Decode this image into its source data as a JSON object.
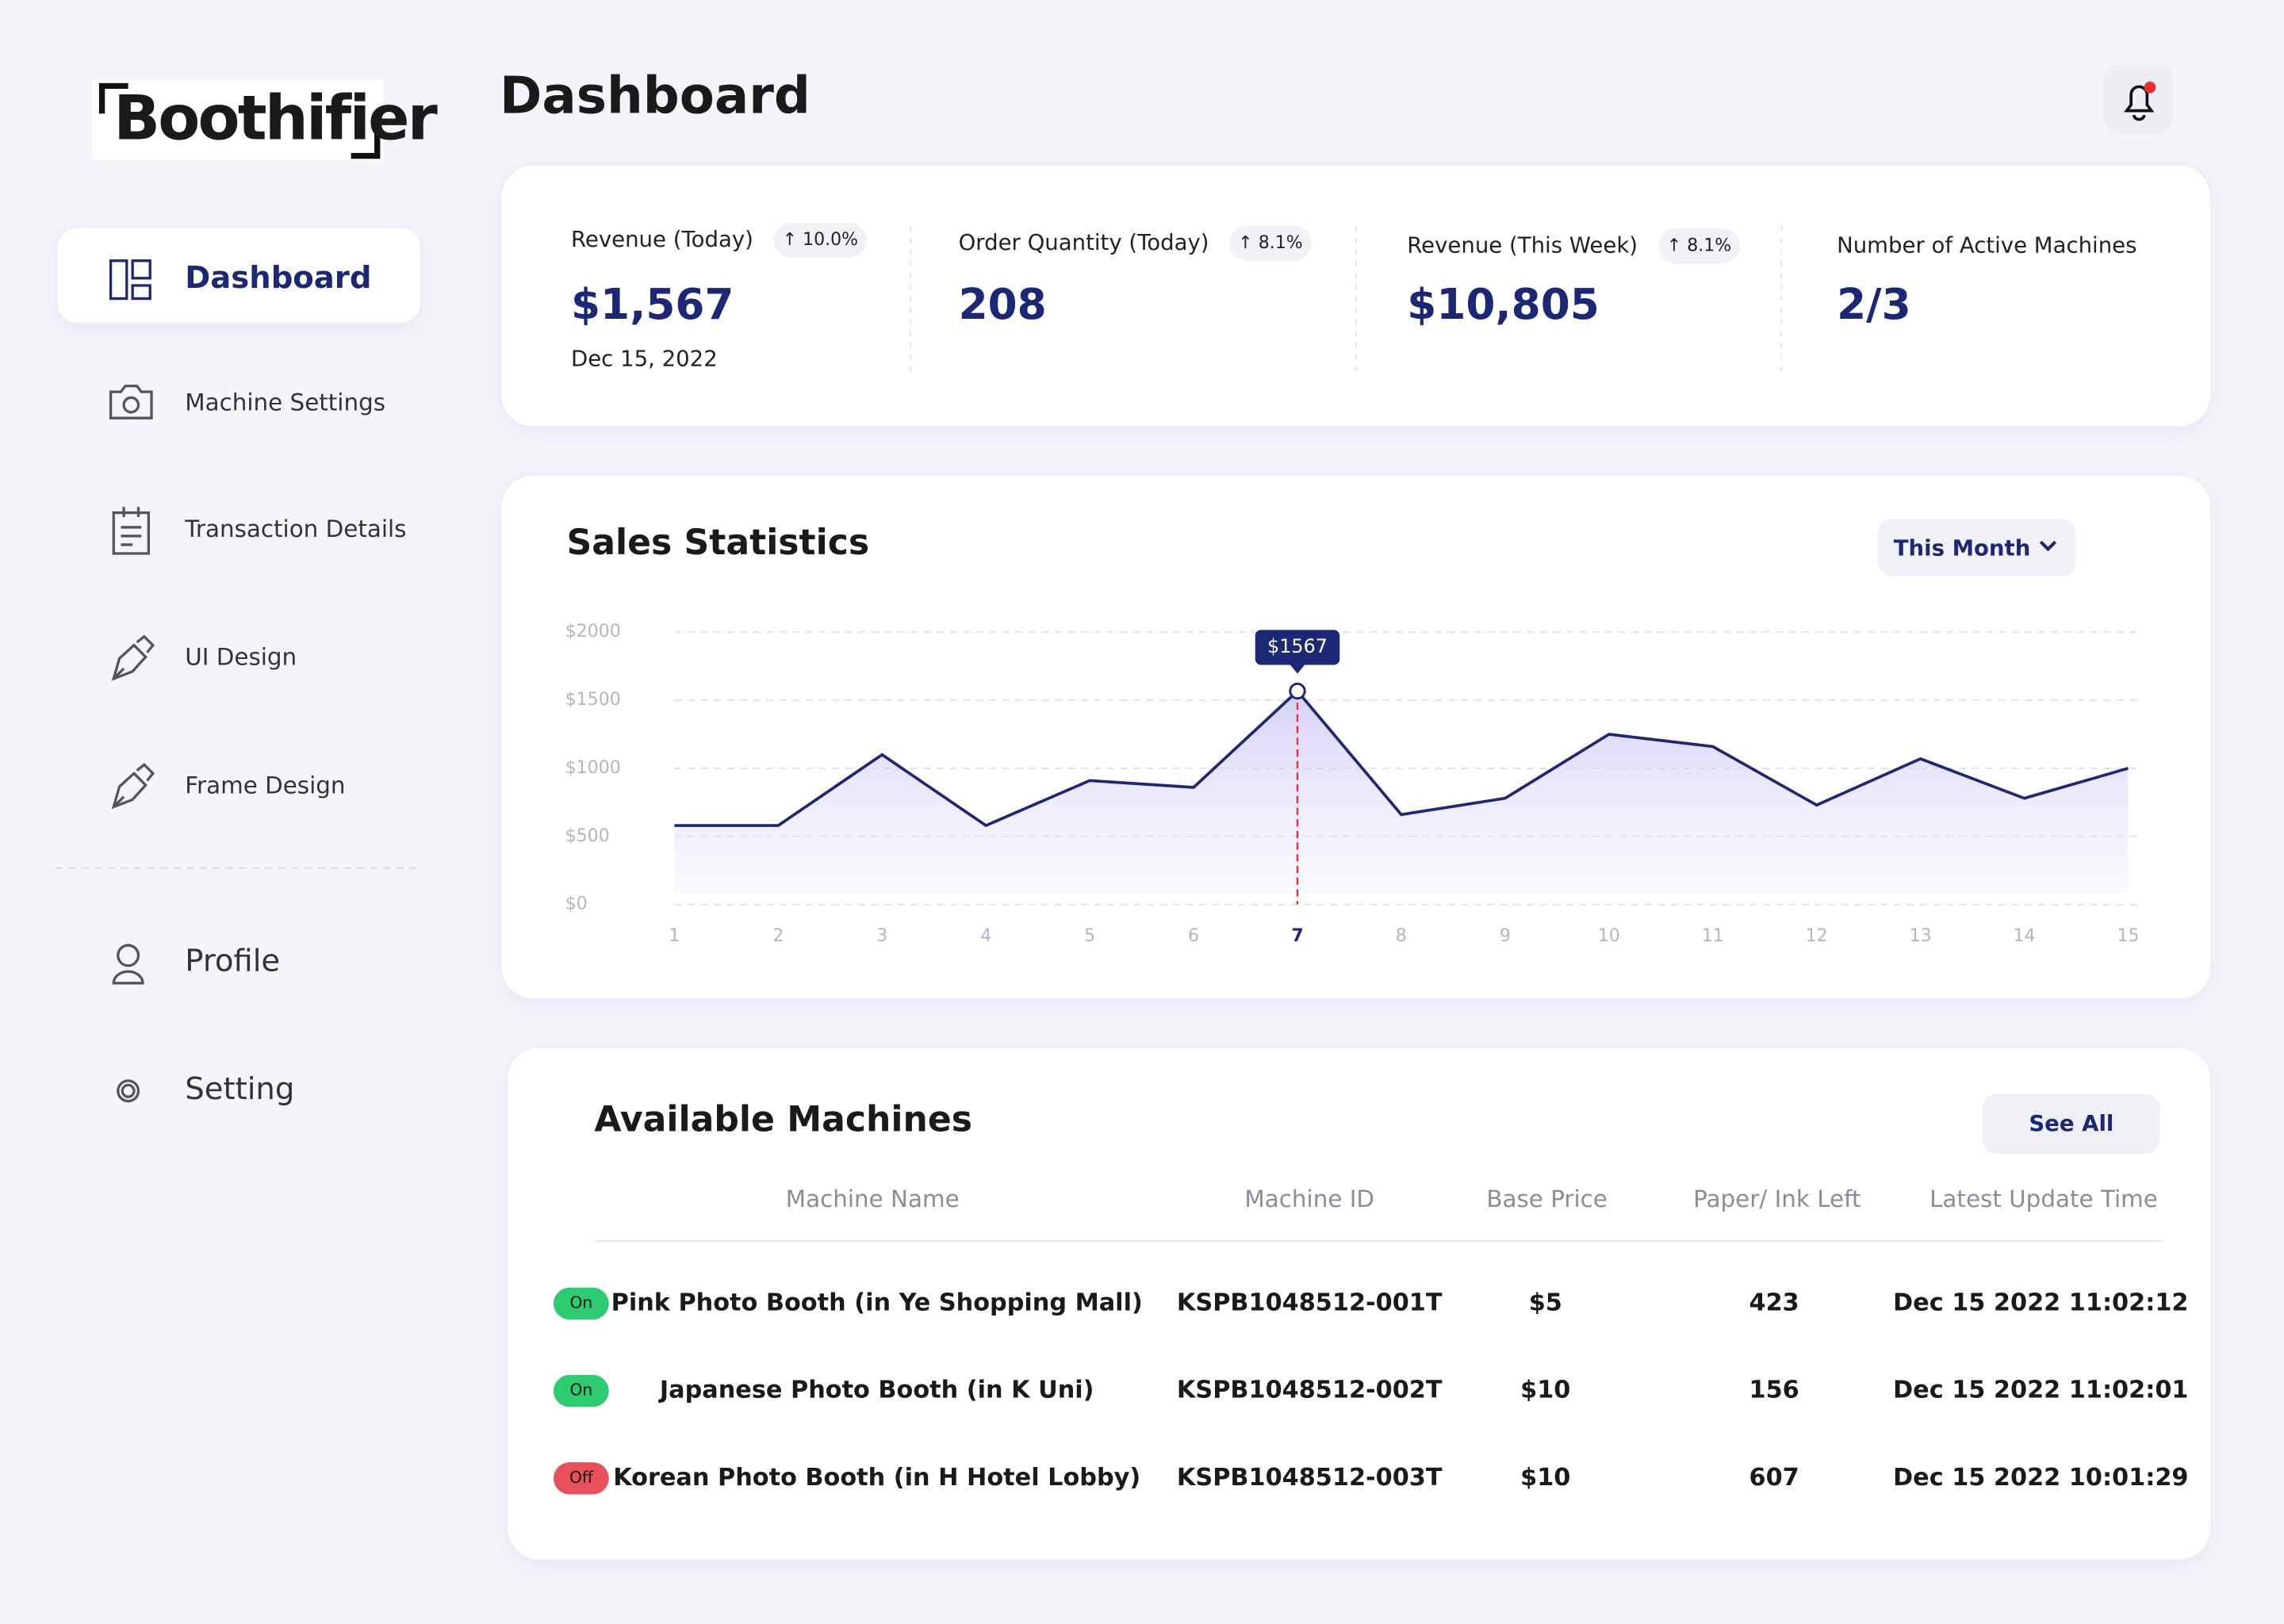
{
  "sidebar": {
    "logo": "Boothifier",
    "nav": [
      "Dashboard",
      "Machine Settings",
      "Transaction Details",
      "UI Design",
      "Frame Design"
    ],
    "nav_bottom": [
      "Profile",
      "Setting"
    ]
  },
  "header": {
    "title": "Dashboard"
  },
  "stats": [
    {
      "label": "Revenue (Today)",
      "change": "↑ 10.0%",
      "value": "$1,567",
      "note": "Dec 15, 2022"
    },
    {
      "label": "Order Quantity (Today)",
      "change": "↑ 8.1%",
      "value": "208"
    },
    {
      "label": "Revenue (This Week)",
      "change": "↑ 8.1%",
      "value": "$10,805"
    },
    {
      "label": "Number of Active Machines",
      "value": "2/3"
    }
  ],
  "chart_data": {
    "type": "line",
    "title": "Sales Statistics",
    "period": "This Month",
    "x": [
      1,
      2,
      3,
      4,
      5,
      6,
      7,
      8,
      9,
      10,
      11,
      12,
      13,
      14,
      15
    ],
    "values": [
      580,
      580,
      1100,
      580,
      910,
      860,
      1567,
      660,
      780,
      1250,
      1160,
      730,
      1070,
      780,
      1000
    ],
    "value_labels": [
      null,
      null,
      null,
      null,
      null,
      null,
      "$1567",
      null,
      null,
      null,
      null,
      null,
      null,
      null,
      null
    ],
    "color": "#1c2775",
    "highlight_x": 7,
    "xlim": [
      1,
      15
    ],
    "xticks": [
      1,
      2,
      3,
      4,
      5,
      6,
      7,
      8,
      9,
      10,
      11,
      12,
      13,
      14,
      15
    ],
    "ylim": [
      0,
      2000
    ],
    "yticks": [
      {
        "value": 0,
        "label": "$0"
      },
      {
        "value": 500,
        "label": "$500"
      },
      {
        "value": 1000,
        "label": "$1000"
      },
      {
        "value": 1500,
        "label": "$1500"
      },
      {
        "value": 2000,
        "label": "$2000"
      }
    ],
    "grid": true
  },
  "machines": {
    "title": "Available Machines",
    "action": "See All",
    "columns": [
      "Machine Name",
      "Machine ID",
      "Base Price",
      "Paper/ Ink Left",
      "Latest Update Time"
    ],
    "rows": [
      {
        "status": "On",
        "name": "Pink Photo Booth (in Ye Shopping Mall)",
        "id": "KSPB1048512-001T",
        "price": "$5",
        "left": 423,
        "updated": "Dec 15 2022 11:02:12"
      },
      {
        "status": "On",
        "name": "Japanese Photo Booth (in K Uni)",
        "id": "KSPB1048512-002T",
        "price": "$10",
        "left": 156,
        "updated": "Dec 15 2022 11:02:01"
      },
      {
        "status": "Off",
        "name": "Korean Photo Booth (in H Hotel Lobby)",
        "id": "KSPB1048512-003T",
        "price": "$10",
        "left": 607,
        "updated": "Dec 15 2022 10:01:29"
      }
    ]
  }
}
